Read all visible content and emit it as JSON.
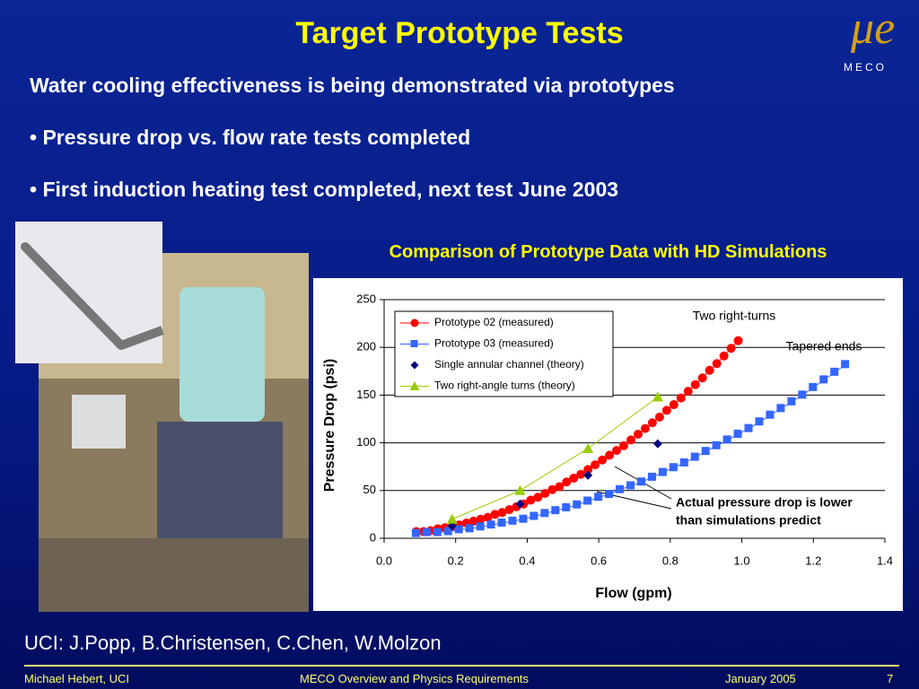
{
  "slide": {
    "title": "Target Prototype Tests",
    "intro": "Water cooling effectiveness is being demonstrated via prototypes",
    "bullets": [
      "Pressure drop vs. flow rate tests completed",
      "First induction heating test completed, next test June 2003"
    ],
    "logo": "MECO",
    "credits": "UCI: J.Popp, B.Christensen, C.Chen, W.Molzon",
    "footer": {
      "author": "Michael Hebert, UCI",
      "talk": "MECO Overview and Physics Requirements",
      "date": "January 2005",
      "page": 7
    }
  },
  "chart_data": {
    "type": "scatter",
    "title": "Comparison of Prototype Data with HD Simulations",
    "xlabel": "Flow (gpm)",
    "ylabel": "Pressure Drop (psi)",
    "xlim": [
      0,
      1.4
    ],
    "ylim": [
      0,
      250
    ],
    "xticks": [
      {
        "value": 0,
        "label": "0.0"
      },
      0.2,
      0.4,
      0.6,
      0.8,
      {
        "value": 1,
        "label": "1.0"
      },
      1.2,
      1.4
    ],
    "yticks": [
      0,
      50,
      100,
      150,
      200,
      250
    ],
    "grid": true,
    "annotations": [
      "Two right-turns",
      "Tapered ends",
      "Actual pressure drop is lower",
      "than simulations predict"
    ],
    "series": [
      {
        "name": "Prototype 02 (measured)",
        "color": "#ff0000",
        "marker": "circle",
        "line": true,
        "x": [
          0.09,
          0.11,
          0.13,
          0.15,
          0.17,
          0.19,
          0.21,
          0.23,
          0.25,
          0.27,
          0.29,
          0.31,
          0.33,
          0.35,
          0.37,
          0.39,
          0.41,
          0.43,
          0.45,
          0.47,
          0.49,
          0.51,
          0.53,
          0.55,
          0.57,
          0.59,
          0.61,
          0.63,
          0.65,
          0.67,
          0.69,
          0.71,
          0.73,
          0.75,
          0.77,
          0.79,
          0.81,
          0.83,
          0.85,
          0.87,
          0.89,
          0.91,
          0.93,
          0.95,
          0.97,
          0.99
        ],
        "values": [
          7,
          7,
          8,
          10,
          11,
          12,
          14,
          16,
          18,
          20,
          22,
          25,
          27,
          30,
          33,
          36,
          40,
          43,
          47,
          51,
          54,
          59,
          63,
          67,
          72,
          77,
          82,
          87,
          92,
          97,
          103,
          109,
          115,
          121,
          127,
          134,
          140,
          147,
          154,
          161,
          168,
          176,
          183,
          191,
          199,
          207
        ]
      },
      {
        "name": "Prototype 03 (measured)",
        "color": "#3366ff",
        "marker": "square",
        "line": true,
        "x": [
          0.09,
          0.12,
          0.15,
          0.18,
          0.21,
          0.24,
          0.27,
          0.3,
          0.33,
          0.36,
          0.39,
          0.42,
          0.45,
          0.48,
          0.51,
          0.54,
          0.57,
          0.6,
          0.63,
          0.66,
          0.69,
          0.72,
          0.75,
          0.78,
          0.81,
          0.84,
          0.87,
          0.9,
          0.93,
          0.96,
          0.99,
          1.02,
          1.05,
          1.08,
          1.11,
          1.14,
          1.17,
          1.2,
          1.23,
          1.26,
          1.29
        ],
        "values": [
          5,
          6,
          6,
          7,
          9,
          10,
          12,
          14,
          16,
          18,
          20,
          23,
          26,
          29,
          32,
          35,
          39,
          43,
          46,
          51,
          55,
          59,
          64,
          69,
          74,
          79,
          85,
          91,
          97,
          103,
          109,
          115,
          122,
          129,
          136,
          143,
          150,
          158,
          166,
          174,
          182
        ]
      },
      {
        "name": "Single annular channel (theory)",
        "color": "#000080",
        "marker": "diamond",
        "line": false,
        "x": [
          0.19,
          0.38,
          0.57,
          0.765
        ],
        "values": [
          13,
          36,
          66,
          99
        ]
      },
      {
        "name": "Two right-angle turns (theory)",
        "color": "#99cc00",
        "marker": "triangle",
        "line": true,
        "x": [
          0.19,
          0.38,
          0.57,
          0.765
        ],
        "values": [
          20,
          50,
          94,
          148
        ]
      }
    ]
  }
}
